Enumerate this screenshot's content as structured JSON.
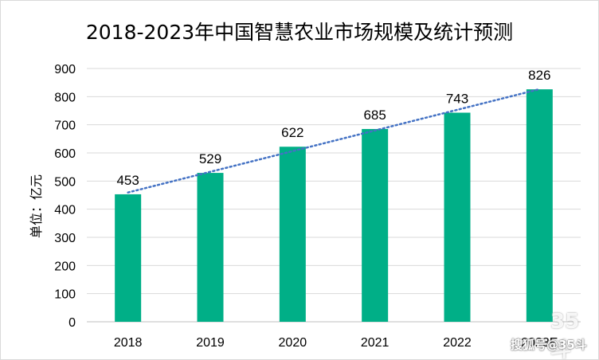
{
  "chart_data": {
    "type": "bar",
    "title": "2018-2023年中国智慧农业市场规模及统计预测",
    "ylabel": "单位：亿元",
    "xlabel": "",
    "categories": [
      "2018",
      "2019",
      "2020",
      "2021",
      "2022",
      "2023E"
    ],
    "values": [
      453,
      529,
      622,
      685,
      743,
      826
    ],
    "ylim": [
      0,
      900
    ],
    "yticks": [
      0,
      100,
      200,
      300,
      400,
      500,
      600,
      700,
      800,
      900
    ],
    "grid": true,
    "legend": "none",
    "trendline": "linear",
    "bar_color": "#00AF87",
    "trend_color": "#4472C4"
  },
  "watermark": {
    "logo": "35斗",
    "text": "搜狐号@35斗"
  }
}
